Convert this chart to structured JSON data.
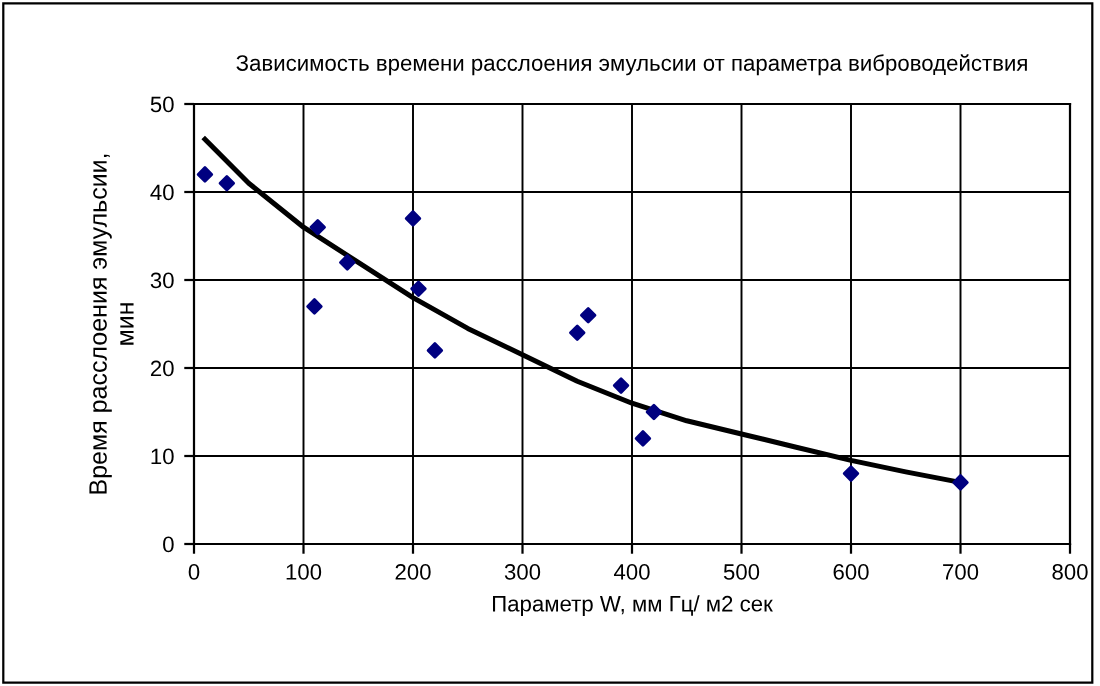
{
  "chart_data": {
    "type": "scatter",
    "title": "Зависимость времени расслоения эмульсии от параметра виброводействия",
    "xlabel": "Параметр W, мм Гц/ м2 сек",
    "ylabel": "Время расслоения эмульсии,\nмин",
    "xlim": [
      0,
      800
    ],
    "ylim": [
      0,
      50
    ],
    "xticks": [
      0,
      100,
      200,
      300,
      400,
      500,
      600,
      700,
      800
    ],
    "yticks": [
      0,
      10,
      20,
      30,
      40,
      50
    ],
    "grid": true,
    "marker": "diamond",
    "legend": false,
    "series": [
      {
        "color": "#000080",
        "x": [
          10,
          30,
          110,
          113,
          140,
          200,
          205,
          220,
          350,
          360,
          390,
          410,
          420,
          600,
          700
        ],
        "values": [
          42,
          41,
          27,
          36,
          32,
          37,
          29,
          22,
          24,
          26,
          18,
          12,
          15,
          8,
          7
        ]
      },
      {
        "type": "line",
        "color": "#000000",
        "marker": "none",
        "x": [
          10,
          50,
          100,
          150,
          200,
          250,
          300,
          350,
          400,
          450,
          500,
          550,
          600,
          650,
          700
        ],
        "values": [
          46,
          41,
          36,
          32,
          28,
          24.5,
          21.5,
          18.5,
          16,
          14,
          12.5,
          11,
          9.5,
          8.2,
          7
        ]
      }
    ]
  }
}
